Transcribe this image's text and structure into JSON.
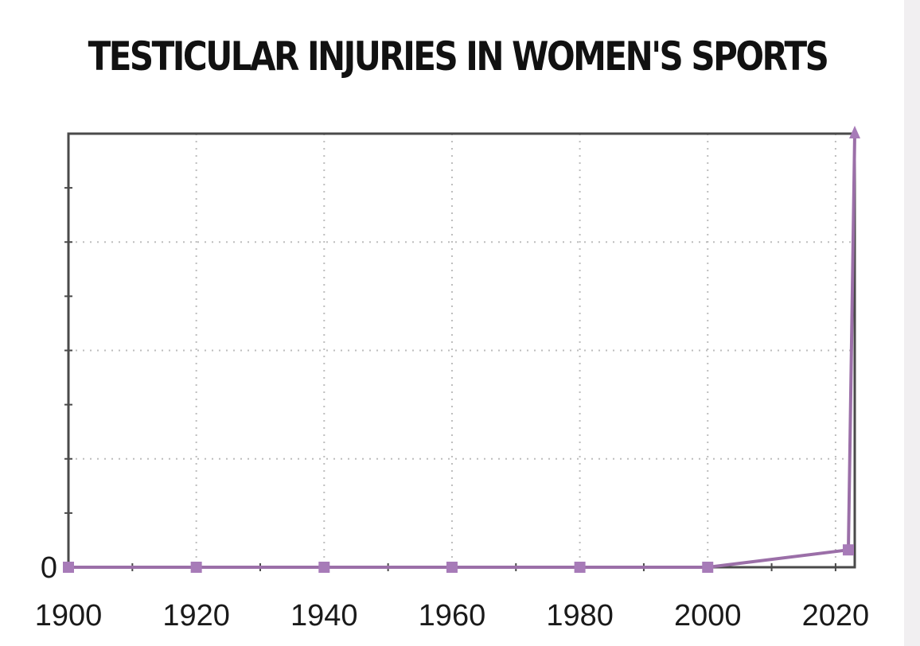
{
  "chart_data": {
    "type": "line",
    "title": "TESTICULAR INJURIES IN WOMEN'S SPORTS",
    "xlabel": "",
    "ylabel": "",
    "x": [
      1900,
      1920,
      1940,
      1960,
      1980,
      2000,
      2022,
      2023
    ],
    "series": [
      {
        "values": [
          0,
          0,
          0,
          0,
          0,
          0,
          0.04,
          1
        ]
      }
    ],
    "x_ticks": [
      "1900",
      "1920",
      "1940",
      "1960",
      "1980",
      "2000",
      "2020"
    ],
    "y_ticks": [
      "0"
    ],
    "xlim": [
      1900,
      2023
    ],
    "ylim": [
      0,
      1
    ],
    "grid": true,
    "line_color": "#9b6fa8",
    "marker_color": "#a77bb8",
    "frame_color": "#4a4a4a",
    "grid_color": "#bdbdbd"
  }
}
